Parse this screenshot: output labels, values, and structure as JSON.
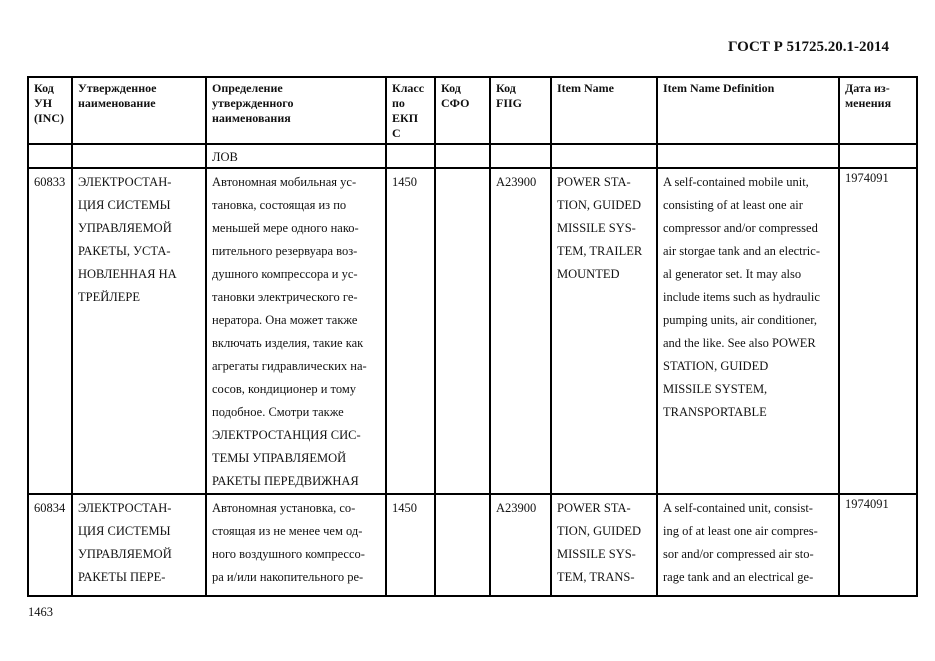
{
  "document": {
    "standard": "ГОСТ Р 51725.20.1-2014",
    "page_number": "1463"
  },
  "table": {
    "headers": [
      "Код\nУН\n(INC)",
      "Утвержденное\nнаименование",
      "Определение\nутвержденного\nнаименования",
      "Класс\nпо\nЕКП\nС",
      "Код\nСФО",
      "Код\nFIIG",
      "Item Name",
      "Item Name Definition",
      "Дата из-\nменения"
    ],
    "rows": [
      {
        "cells": [
          "",
          "",
          "ЛОВ",
          "",
          "",
          "",
          "",
          "",
          ""
        ]
      },
      {
        "cells": [
          "60833",
          "ЭЛЕКТРОСТАН-\nЦИЯ СИСТЕМЫ\nУПРАВЛЯЕМОЙ\nРАКЕТЫ, УСТА-\nНОВЛЕННАЯ НА\nТРЕЙЛЕРЕ",
          "Автономная мобильная ус-\nтановка, состоящая из по\nменьшей мере одного нако-\nпительного резервуара воз-\nдушного компрессора и ус-\nтановки электрического ге-\nнератора. Она может также\nвключать изделия, такие как\nагрегаты гидравлических на-\nсосов, кондиционер и тому\nподобное. Смотри также\nЭЛЕКТРОСТАНЦИЯ СИС-\nТЕМЫ УПРАВЛЯЕМОЙ\nРАКЕТЫ ПЕРЕДВИЖНАЯ",
          "1450",
          "",
          "A23900",
          "POWER STA-\nTION, GUIDED\nMISSILE SYS-\nTEM, TRAILER\nMOUNTED",
          "A self-contained mobile unit,\nconsisting of at least one air\ncompressor and/or compressed\nair storgae tank and an electric-\nal generator set. It may also\ninclude items such as hydraulic\npumping units, air conditioner,\nand the like. See also POWER\nSTATION, GUIDED\nMISSILE SYSTEM,\nTRANSPORTABLE",
          "1974091"
        ]
      },
      {
        "cells": [
          "60834",
          "ЭЛЕКТРОСТАН-\nЦИЯ СИСТЕМЫ\nУПРАВЛЯЕМОЙ\nРАКЕТЫ ПЕРЕ-",
          "Автономная установка, со-\nстоящая из не менее чем од-\nного воздушного компрессо-\nра и/или накопительного ре-",
          "1450",
          "",
          "A23900",
          "POWER STA-\nTION, GUIDED\nMISSILE SYS-\nTEM, TRANS-",
          "A self-contained unit, consist-\ning of at least one air compres-\nsor and/or compressed air sto-\nrage tank and an electrical ge-",
          "1974091"
        ]
      }
    ]
  }
}
